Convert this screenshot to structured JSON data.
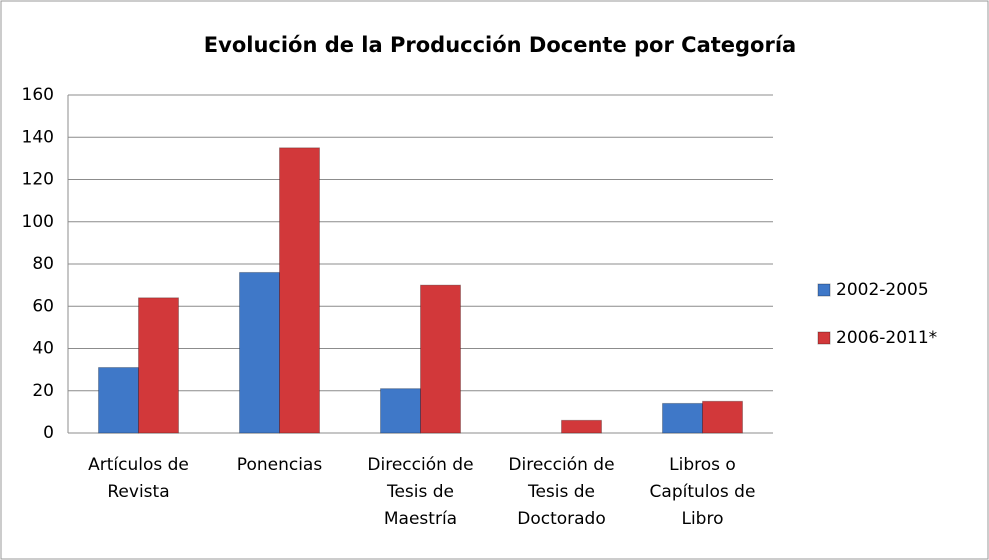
{
  "chart_data": {
    "type": "bar",
    "title": "Evolución de la Producción Docente por Categoría",
    "categories": [
      "Artículos de Revista",
      "Ponencias",
      "Dirección de Tesis de Maestría",
      "Dirección de Tesis de Doctorado",
      "Libros o Capítulos de Libro"
    ],
    "series": [
      {
        "name": "2002-2005",
        "color": "#3f78c8",
        "values": [
          31,
          76,
          21,
          0,
          14
        ]
      },
      {
        "name": "2006-2011*",
        "color": "#d2383a",
        "values": [
          64,
          135,
          70,
          6,
          15
        ]
      }
    ],
    "ylim": [
      0,
      160
    ],
    "yticks": [
      0,
      20,
      40,
      60,
      80,
      100,
      120,
      140,
      160
    ],
    "grid": true,
    "legend": "right"
  }
}
